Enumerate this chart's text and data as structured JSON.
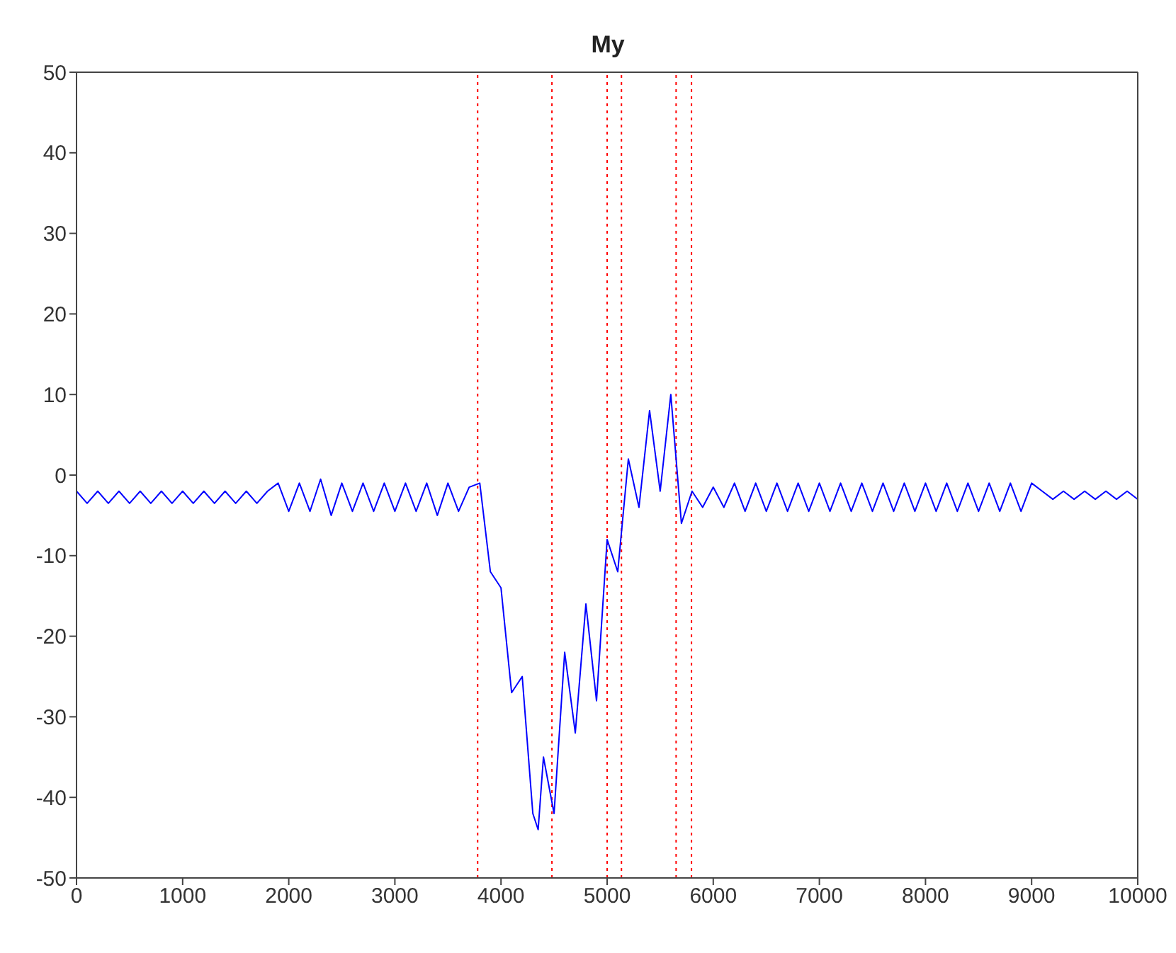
{
  "chart_data": {
    "type": "line",
    "title": "My",
    "x": [
      0,
      100,
      200,
      300,
      400,
      500,
      600,
      700,
      800,
      900,
      1000,
      1100,
      1200,
      1300,
      1400,
      1500,
      1600,
      1700,
      1800,
      1900,
      2000,
      2100,
      2200,
      2300,
      2400,
      2500,
      2600,
      2700,
      2800,
      2900,
      3000,
      3100,
      3200,
      3300,
      3400,
      3500,
      3600,
      3700,
      3800,
      3900,
      4000,
      4100,
      4200,
      4300,
      4350,
      4400,
      4500,
      4600,
      4700,
      4800,
      4900,
      5000,
      5100,
      5200,
      5300,
      5400,
      5500,
      5600,
      5700,
      5800,
      5900,
      6000,
      6100,
      6200,
      6300,
      6400,
      6500,
      6600,
      6700,
      6800,
      6900,
      7000,
      7100,
      7200,
      7300,
      7400,
      7500,
      7600,
      7700,
      7800,
      7900,
      8000,
      8100,
      8200,
      8300,
      8400,
      8500,
      8600,
      8700,
      8800,
      8900,
      9000,
      9100,
      9200,
      9300,
      9400,
      9500,
      9600,
      9700,
      9800,
      9900,
      10000
    ],
    "series": [
      {
        "color": "#0000ff",
        "values": [
          -2,
          -3.5,
          -2,
          -3.5,
          -2,
          -3.5,
          -2,
          -3.5,
          -2,
          -3.5,
          -2,
          -3.5,
          -2,
          -3.5,
          -2,
          -3.5,
          -2,
          -3.5,
          -2,
          -1,
          -4.5,
          -1,
          -4.5,
          -0.5,
          -5,
          -1,
          -4.5,
          -1,
          -4.5,
          -1,
          -4.5,
          -1,
          -4.5,
          -1,
          -5,
          -1,
          -4.5,
          -1.5,
          -1,
          -12,
          -14,
          -27,
          -25,
          -42,
          -44,
          -35,
          -42,
          -22,
          -32,
          -16,
          -28,
          -8,
          -12,
          2,
          -4,
          8,
          -2,
          10,
          -6,
          -2,
          -4,
          -1.5,
          -4,
          -1,
          -4.5,
          -1,
          -4.5,
          -1,
          -4.5,
          -1,
          -4.5,
          -1,
          -4.5,
          -1,
          -4.5,
          -1,
          -4.5,
          -1,
          -4.5,
          -1,
          -4.5,
          -1,
          -4.5,
          -1,
          -4.5,
          -1,
          -4.5,
          -1,
          -4.5,
          -1,
          -4.5,
          -1,
          -2,
          -3,
          -2,
          -3,
          -2,
          -3,
          -2,
          -3,
          -2,
          -3
        ]
      }
    ],
    "xlim": [
      0,
      10000
    ],
    "xticks": [
      0,
      1000,
      2000,
      3000,
      4000,
      5000,
      6000,
      7000,
      8000,
      9000,
      10000
    ],
    "ylim": [
      -50,
      50
    ],
    "yticks": [
      -50,
      -40,
      -30,
      -20,
      -10,
      0,
      10,
      20,
      30,
      40,
      50
    ],
    "grid": false,
    "marker": "none",
    "line_style": "solid",
    "ref_lines": [
      {
        "axis": "x",
        "value": 3780,
        "color": "#ff0000",
        "line_style": "dotted"
      },
      {
        "axis": "x",
        "value": 4480,
        "color": "#ff0000",
        "line_style": "dotted"
      },
      {
        "axis": "x",
        "value": 5000,
        "color": "#ff0000",
        "line_style": "dotted"
      },
      {
        "axis": "x",
        "value": 5135,
        "color": "#ff0000",
        "line_style": "dotted"
      },
      {
        "axis": "x",
        "value": 5650,
        "color": "#ff0000",
        "line_style": "dotted"
      },
      {
        "axis": "x",
        "value": 5795,
        "color": "#ff0000",
        "line_style": "dotted"
      }
    ]
  }
}
